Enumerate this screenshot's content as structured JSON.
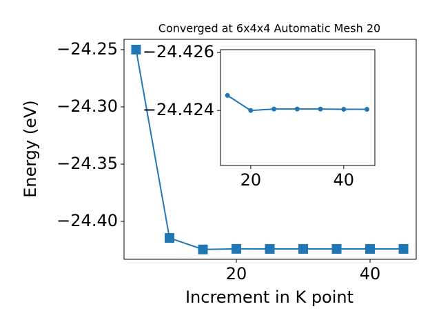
{
  "chart_data": [
    {
      "type": "line",
      "title": "Converged at 6x4x4 Automatic Mesh 20",
      "xlabel": "Increment in K point",
      "ylabel": "Energy (eV)",
      "x": [
        5,
        10,
        15,
        20,
        25,
        30,
        35,
        40,
        45
      ],
      "series": [
        {
          "color": "#1f77b4",
          "marker": "square",
          "values": [
            -24.25,
            -24.4145,
            -24.42452,
            -24.424,
            -24.42405,
            -24.42405,
            -24.42405,
            -24.42404,
            -24.42404
          ]
        }
      ],
      "xlim": [
        3.2,
        46.9
      ],
      "xticks": [
        20,
        40
      ],
      "ylim": [
        -24.4331,
        -24.241
      ],
      "yticks": [
        {
          "value": -24.25,
          "label": "−24.25"
        },
        {
          "value": -24.3,
          "label": "−24.30"
        },
        {
          "value": -24.35,
          "label": "−24.35"
        },
        {
          "value": -24.4,
          "label": "−24.40"
        }
      ]
    },
    {
      "type": "line",
      "x": [
        15,
        20,
        25,
        30,
        35,
        40,
        45
      ],
      "series": [
        {
          "color": "#1f77b4",
          "marker": "circle",
          "values": [
            -24.42452,
            -24.424,
            -24.42405,
            -24.42405,
            -24.42405,
            -24.42404,
            -24.42404
          ]
        }
      ],
      "xlim": [
        13.5,
        46.7
      ],
      "xticks": [
        20,
        40
      ],
      "ylim": [
        -24.4221,
        -24.4261
      ],
      "yticks": [
        {
          "value": -24.426,
          "label": "−24.426"
        },
        {
          "value": -24.424,
          "label": "−24.424"
        }
      ]
    }
  ]
}
